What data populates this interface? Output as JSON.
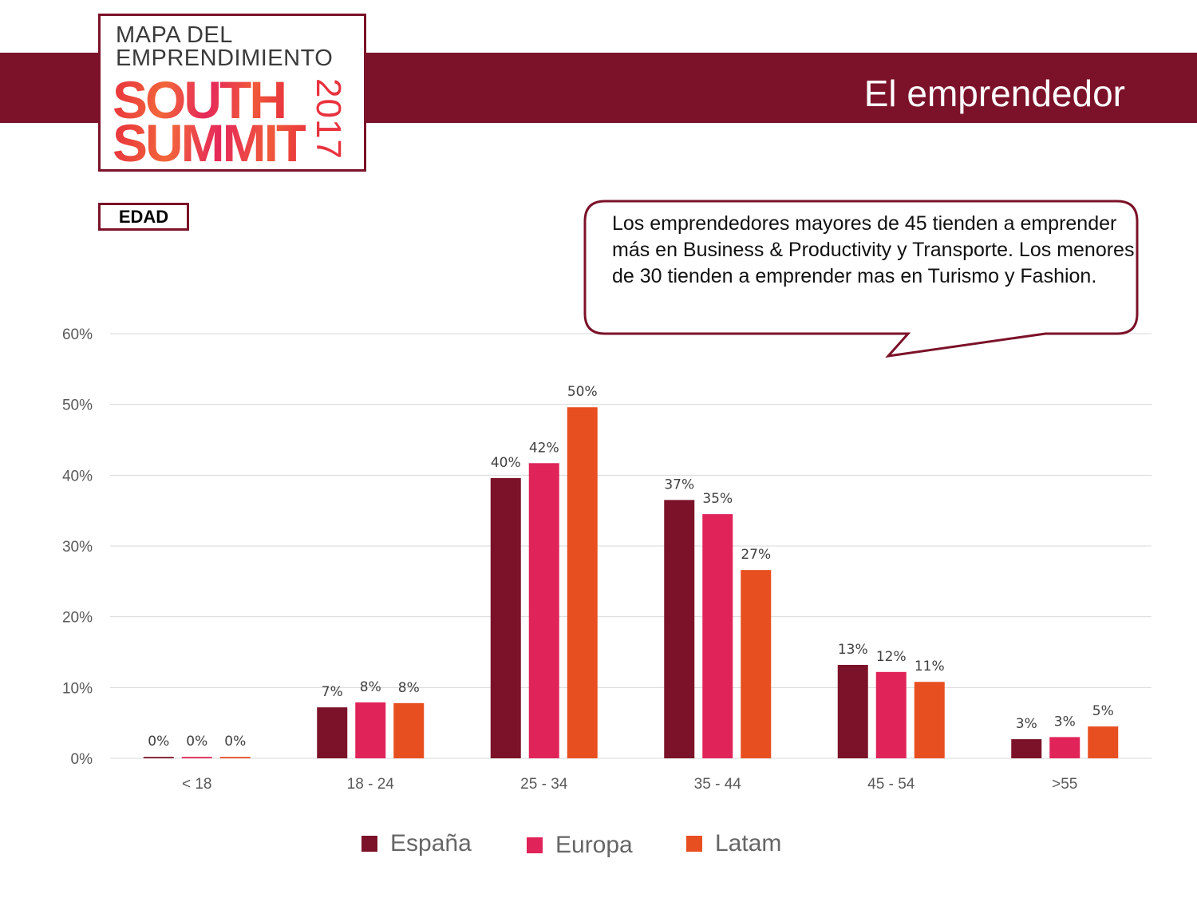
{
  "header": {
    "title": "El emprendedor"
  },
  "logo": {
    "line1": "MAPA DEL",
    "line2": "EMPRENDIMIENTO",
    "line3": "SOUTH",
    "line4": "SUMMIT",
    "year": "2017"
  },
  "section_label": "EDAD",
  "callout": "Los emprendedores mayores de 45 tienden a emprender más en Business & Productivity y Transporte. Los menores de 30 tienden a emprender mas en Turismo y Fashion.",
  "chart_data": {
    "type": "bar",
    "title": "",
    "xlabel": "",
    "ylabel": "",
    "ylim": [
      0,
      60
    ],
    "yticks": [
      "0%",
      "10%",
      "20%",
      "30%",
      "40%",
      "50%",
      "60%"
    ],
    "grid": true,
    "legend_position": "bottom",
    "categories": [
      "< 18",
      "18 - 24",
      "25 - 34",
      "35 - 44",
      "45 - 54",
      ">55"
    ],
    "series": [
      {
        "name": "España",
        "color": "#7b1229",
        "values": [
          0.2,
          7.2,
          39.6,
          36.5,
          13.2,
          2.7
        ]
      },
      {
        "name": "Europa",
        "color": "#e0245a",
        "values": [
          0.2,
          7.9,
          41.7,
          34.5,
          12.2,
          3.0
        ]
      },
      {
        "name": "Latam",
        "color": "#e84f20",
        "values": [
          0.2,
          7.8,
          49.6,
          26.6,
          10.8,
          4.5
        ]
      }
    ]
  }
}
